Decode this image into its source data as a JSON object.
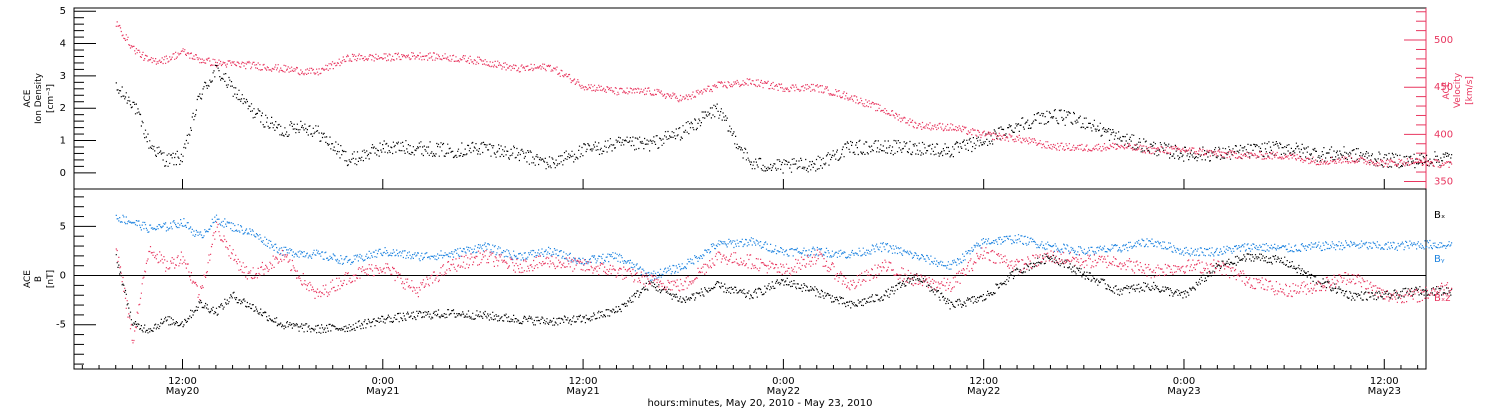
{
  "chart_data": [
    {
      "type": "scatter",
      "panel": "top",
      "ylabel_lines": [
        "ACE",
        "Ion Density"
      ],
      "ylabel_unit": "[cm⁻³]",
      "ylim": [
        -0.5,
        5.1
      ],
      "yticks": [
        0,
        1,
        2,
        3,
        4,
        5
      ],
      "ylabel_right_lines": [
        "ACE",
        "Velocity"
      ],
      "ylabel_right_unit": "[km/s]",
      "ylim_right": [
        342,
        534
      ],
      "yticks_right": [
        350,
        400,
        450,
        500
      ],
      "series": [
        {
          "color": "#000000",
          "axis": "left",
          "x": [
            0,
            1,
            2,
            3,
            4,
            5,
            6,
            7,
            8,
            9,
            10,
            11,
            12,
            14,
            16,
            18,
            20,
            22,
            24,
            26,
            28,
            30,
            32,
            34,
            36,
            38,
            40,
            42,
            44,
            46,
            48,
            50,
            52,
            54,
            56,
            58,
            60,
            62,
            64,
            66,
            68,
            70,
            72,
            74,
            76,
            78,
            80
          ],
          "y": [
            2.6,
            2.2,
            0.9,
            0.4,
            0.5,
            2.4,
            3.2,
            2.6,
            2.0,
            1.6,
            1.3,
            1.5,
            1.3,
            0.4,
            0.8,
            0.8,
            0.7,
            0.8,
            0.6,
            0.3,
            0.7,
            0.9,
            0.9,
            1.3,
            2.0,
            0.3,
            0.2,
            0.3,
            0.8,
            0.8,
            0.8,
            0.7,
            1.0,
            1.5,
            1.8,
            1.6,
            1.1,
            0.8,
            0.6,
            0.6,
            0.7,
            0.8,
            0.6,
            0.6,
            0.4,
            0.4,
            0.5
          ]
        },
        {
          "color": "#e8365f",
          "axis": "right",
          "x": [
            0,
            1,
            2,
            3,
            4,
            5,
            6,
            8,
            10,
            12,
            14,
            16,
            18,
            20,
            22,
            24,
            26,
            28,
            30,
            32,
            34,
            36,
            38,
            40,
            42,
            44,
            46,
            48,
            50,
            52,
            54,
            56,
            58,
            60,
            62,
            64,
            66,
            68,
            70,
            72,
            74,
            76,
            78,
            80
          ],
          "y": [
            518,
            492,
            478,
            480,
            488,
            480,
            476,
            474,
            470,
            466,
            482,
            482,
            484,
            482,
            478,
            470,
            472,
            452,
            446,
            446,
            438,
            452,
            456,
            450,
            450,
            440,
            426,
            410,
            408,
            400,
            396,
            388,
            386,
            388,
            384,
            384,
            380,
            378,
            378,
            372,
            374,
            370,
            372,
            368
          ]
        }
      ]
    },
    {
      "type": "scatter",
      "panel": "bottom",
      "ylabel_lines": [
        "ACE",
        "B"
      ],
      "ylabel_unit": "[nT]",
      "ylim": [
        -9.5,
        8.8
      ],
      "yticks": [
        -5,
        0,
        5
      ],
      "series": [
        {
          "name": "Bₓ",
          "color": "#000000",
          "x": [
            0,
            1,
            2,
            3,
            4,
            5,
            6,
            7,
            8,
            10,
            12,
            14,
            16,
            18,
            20,
            22,
            24,
            26,
            28,
            30,
            32,
            34,
            36,
            38,
            40,
            42,
            44,
            46,
            48,
            50,
            52,
            54,
            56,
            58,
            60,
            62,
            64,
            66,
            68,
            70,
            72,
            74,
            76,
            78,
            80
          ],
          "y": [
            2.0,
            -5.0,
            -5.4,
            -4.5,
            -4.8,
            -2.8,
            -3.6,
            -2.0,
            -3.0,
            -5.0,
            -5.4,
            -5.2,
            -4.4,
            -4.0,
            -3.8,
            -4.0,
            -4.4,
            -4.6,
            -4.4,
            -3.5,
            -0.8,
            -2.5,
            -1.0,
            -2.0,
            -0.5,
            -1.6,
            -3.0,
            -2.0,
            0.0,
            -3.0,
            -2.2,
            0.5,
            2.0,
            0.2,
            -1.5,
            -1.0,
            -2.0,
            1.0,
            2.0,
            1.5,
            -0.5,
            -2.0,
            -2.0,
            -1.5,
            -1.5
          ]
        },
        {
          "name": "Bᵧ",
          "color": "#1f84e0",
          "x": [
            0,
            1,
            2,
            3,
            4,
            5,
            6,
            7,
            8,
            10,
            12,
            14,
            16,
            18,
            20,
            22,
            24,
            26,
            28,
            30,
            32,
            34,
            36,
            38,
            40,
            42,
            44,
            46,
            48,
            50,
            52,
            54,
            56,
            58,
            60,
            62,
            64,
            66,
            68,
            70,
            72,
            74,
            76,
            78,
            80
          ],
          "y": [
            6.0,
            5.5,
            4.8,
            5.0,
            5.5,
            4.0,
            5.8,
            5.0,
            4.5,
            2.5,
            2.2,
            1.5,
            2.5,
            2.0,
            2.2,
            3.0,
            2.0,
            2.5,
            1.5,
            2.0,
            0.0,
            1.0,
            3.2,
            3.5,
            2.5,
            2.5,
            2.2,
            3.0,
            2.0,
            1.0,
            3.5,
            3.8,
            3.0,
            2.5,
            2.8,
            3.5,
            2.5,
            2.5,
            3.0,
            2.8,
            3.0,
            3.2,
            3.0,
            3.2,
            3.2
          ]
        },
        {
          "name": "Bₓz",
          "color": "#e8365f",
          "x": [
            0,
            1,
            2,
            3,
            4,
            5,
            6,
            7,
            8,
            10,
            12,
            14,
            16,
            18,
            20,
            22,
            24,
            26,
            28,
            30,
            32,
            34,
            36,
            38,
            40,
            42,
            44,
            46,
            48,
            50,
            52,
            54,
            56,
            58,
            60,
            62,
            64,
            66,
            68,
            70,
            72,
            74,
            76,
            78,
            80
          ],
          "y": [
            3.0,
            -6.5,
            3.0,
            1.0,
            2.0,
            -2.0,
            5.0,
            2.0,
            0.0,
            2.0,
            -2.0,
            0.0,
            1.0,
            -1.5,
            1.0,
            2.0,
            1.0,
            1.5,
            1.0,
            0.5,
            -0.5,
            -1.0,
            2.0,
            1.5,
            0.5,
            2.0,
            -1.0,
            1.0,
            -0.5,
            -1.0,
            2.5,
            1.0,
            2.0,
            1.5,
            1.5,
            0.5,
            1.0,
            1.0,
            -0.5,
            -1.5,
            -1.0,
            0.0,
            -2.0,
            -2.0,
            -1.0
          ]
        }
      ],
      "legend": [
        "Bₓ",
        "Bᵧ",
        "Bₓz"
      ],
      "legend_placement": "right"
    }
  ],
  "x_axis": {
    "start": "May 20, 2010 08:00",
    "ticks": [
      {
        "hours": 4,
        "time": "12:00",
        "date": "May20"
      },
      {
        "hours": 16,
        "time": "0:00",
        "date": "May21"
      },
      {
        "hours": 28,
        "time": "12:00",
        "date": "May21"
      },
      {
        "hours": 40,
        "time": "0:00",
        "date": "May22"
      },
      {
        "hours": 52,
        "time": "12:00",
        "date": "May22"
      },
      {
        "hours": 64,
        "time": "0:00",
        "date": "May23"
      },
      {
        "hours": 76,
        "time": "12:00",
        "date": "May23"
      }
    ],
    "xlim_hours": [
      -2.5,
      78.5
    ],
    "title": "hours:minutes, May 20, 2010 - May 23, 2010"
  },
  "legend_labels": {
    "bx": "Bₓ",
    "by": "Bᵧ",
    "bz": "Bₓz"
  },
  "colors": {
    "black": "#000000",
    "pink": "#e8365f",
    "blue": "#1f84e0"
  }
}
